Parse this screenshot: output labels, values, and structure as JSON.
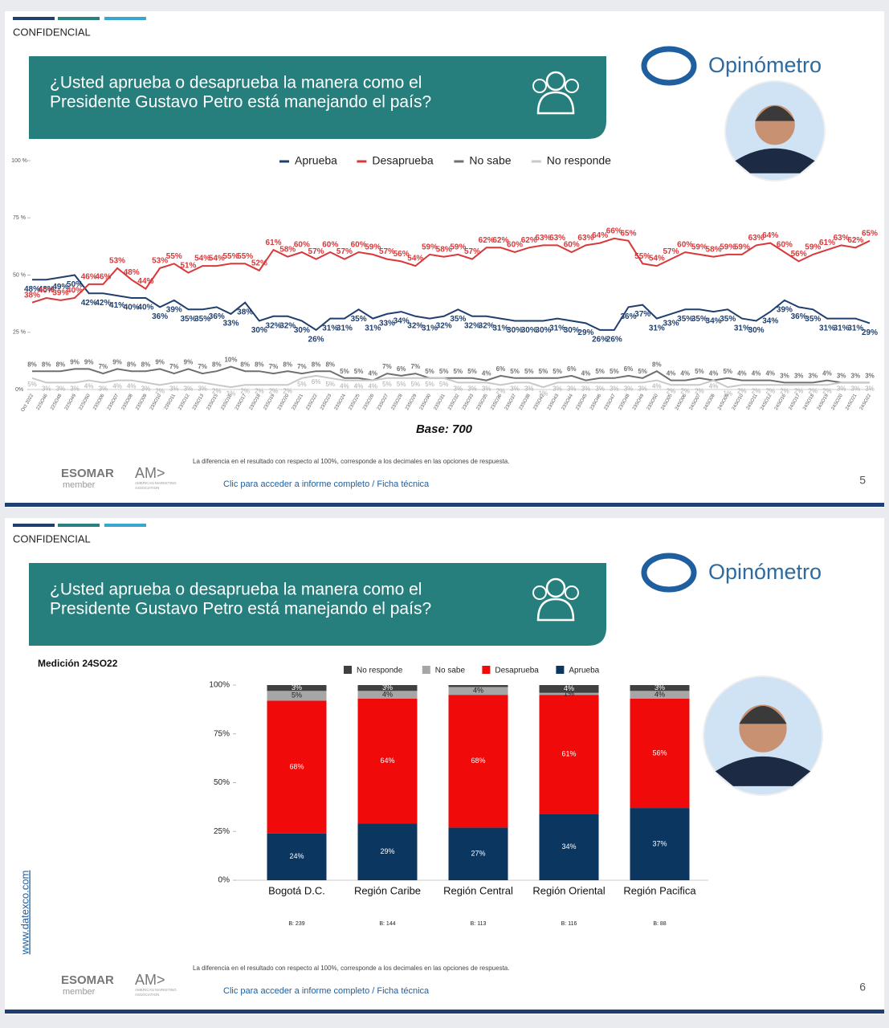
{
  "slides": [
    {
      "confidential": "CONFIDENCIAL",
      "question": [
        "¿Usted aprueba o desaprueba la manera como el",
        "Presidente Gustavo Petro está manejando el país?"
      ],
      "brand": "Opinómetro",
      "note": "La diferencia en el resultado con respecto al 100%, corresponde a los decimales en las opciones de respuesta.",
      "link": "Clic para acceder a informe completo / Ficha técnica",
      "page": 5,
      "esomar": "ESOMAR",
      "member": "member",
      "ama": "AM>",
      "ama_sub": [
        "AMERICAN MARKETING",
        "ASSOCIATION"
      ]
    },
    {
      "confidential": "CONFIDENCIAL",
      "question": [
        "¿Usted aprueba o desaprueba la manera como el",
        "Presidente Gustavo Petro está manejando el país?"
      ],
      "brand": "Opinómetro",
      "note": "La diferencia en el resultado con respecto al 100%, corresponde a los decimales en las opciones de respuesta.",
      "link": "Clic para acceder a informe completo / Ficha técnica",
      "page": 6,
      "esomar": "ESOMAR",
      "member": "member",
      "ama": "AM>",
      "ama_sub": [
        "AMERICAN MARKETING",
        "ASSOCIATION"
      ],
      "website": "www.datexco.com"
    }
  ],
  "chart_data": [
    {
      "type": "line",
      "base": "Base: 700",
      "x": [
        "Oct 2022",
        "22SO46",
        "22SO48",
        "22SO49",
        "22SO50",
        "23SO06",
        "23SO07",
        "23SO08",
        "23SO09",
        "23SO10",
        "23SO11",
        "23SO12",
        "23SO13",
        "23SO15",
        "23SO16",
        "23SO17",
        "23SO18",
        "23SO19",
        "23SO20",
        "23SO21",
        "23SO22",
        "23SO23",
        "23SO24",
        "23SO25",
        "23SO26",
        "23SO27",
        "23SO28",
        "23SO29",
        "23SO30",
        "23SO31",
        "23SO32",
        "23SO33",
        "23SO35",
        "23SO36",
        "23SO37",
        "23SO38",
        "23SO42",
        "23SO43",
        "23SO44",
        "23SO45",
        "23SO46",
        "23SO47",
        "23SO48",
        "23SO49",
        "23SO50",
        "24SO05",
        "24SO06",
        "24SO07",
        "24SO08",
        "24SO09",
        "24SO10",
        "24SO11",
        "24SO12",
        "24SO16",
        "24SO17",
        "24SO18",
        "24SO19",
        "24SO20",
        "24SO21",
        "24SO22"
      ],
      "ylim": [
        0,
        100
      ],
      "yticks": [
        {
          "value": 0,
          "label": "0%"
        },
        {
          "value": 25,
          "label": "25 %"
        },
        {
          "value": 50,
          "label": "50 %"
        },
        {
          "value": 75,
          "label": "75 %"
        },
        {
          "value": 100,
          "label": "100 %"
        }
      ],
      "grid": false,
      "series": [
        {
          "name": "Aprueba",
          "color": "#1f3f6e",
          "values": [
            48,
            48,
            49,
            50,
            42,
            42,
            41,
            40,
            40,
            36,
            39,
            35,
            35,
            36,
            33,
            38,
            30,
            32,
            32,
            30,
            26,
            31,
            31,
            35,
            31,
            33,
            34,
            32,
            31,
            32,
            35,
            32,
            32,
            31,
            30,
            30,
            30,
            31,
            30,
            29,
            26,
            26,
            36,
            37,
            31,
            33,
            35,
            35,
            34,
            35,
            31,
            30,
            34,
            39,
            36,
            35,
            31,
            31,
            31,
            29
          ],
          "value_labels": [
            "48%",
            "48%",
            "49%",
            "50%",
            "42%",
            "42%",
            "41%",
            "40%",
            "40%",
            "36%",
            "39%",
            "35%",
            "35%",
            "36%",
            "33%",
            "38%",
            "30%",
            "32%",
            "32%",
            "30%",
            "26%",
            "31%",
            "31%",
            "35%",
            "31%",
            "33%",
            "34%",
            "32%",
            "31%",
            "32%",
            "35%",
            "32%",
            "32%",
            "31%",
            "30%",
            "30%",
            "30%",
            "31%",
            "30%",
            "29%",
            "26%",
            "26%",
            "36%",
            "37%",
            "31%",
            "33%",
            "35%",
            "35%",
            "34%",
            "35%",
            "31%",
            "30%",
            "34%",
            "39%",
            "36%",
            "35%",
            "31%",
            "31%",
            "31%",
            "29%"
          ]
        },
        {
          "name": "Desaprueba",
          "color": "#d9383a",
          "values": [
            38,
            40,
            39,
            40,
            46,
            46,
            53,
            48,
            44,
            53,
            55,
            51,
            54,
            54,
            55,
            55,
            52,
            61,
            58,
            60,
            57,
            60,
            57,
            60,
            59,
            57,
            56,
            54,
            59,
            58,
            59,
            57,
            62,
            62,
            60,
            62,
            63,
            63,
            60,
            63,
            64,
            66,
            65,
            55,
            54,
            57,
            60,
            59,
            58,
            59,
            59,
            63,
            64,
            60,
            56,
            59,
            61,
            63,
            62,
            65
          ],
          "value_labels": [
            "38%",
            "40%",
            "39%",
            "40%",
            "46%",
            "46%",
            "53%",
            "48%",
            "44%",
            "53%",
            "55%",
            "51%",
            "54%",
            "54%",
            "55%",
            "55%",
            "52%",
            "61%",
            "58%",
            "60%",
            "57%",
            "60%",
            "57%",
            "60%",
            "59%",
            "57%",
            "56%",
            "54%",
            "59%",
            "58%",
            "59%",
            "57%",
            "62%",
            "62%",
            "60%",
            "62%",
            "63%",
            "63%",
            "60%",
            "63%",
            "64%",
            "66%",
            "65%",
            "55%",
            "54%",
            "57%",
            "60%",
            "59%",
            "58%",
            "59%",
            "59%",
            "63%",
            "64%",
            "60%",
            "56%",
            "59%",
            "61%",
            "63%",
            "62%",
            "65%"
          ]
        },
        {
          "name": "No sabe",
          "color": "#707070",
          "values": [
            8,
            8,
            8,
            9,
            9,
            7,
            9,
            8,
            8,
            9,
            7,
            9,
            7,
            8,
            10,
            8,
            8,
            7,
            8,
            7,
            8,
            8,
            5,
            5,
            4,
            7,
            6,
            7,
            5,
            5,
            5,
            5,
            4,
            6,
            5,
            5,
            5,
            5,
            6,
            4,
            5,
            5,
            6,
            5,
            8,
            4,
            4,
            5,
            4,
            5,
            4,
            4,
            4,
            3,
            3,
            3,
            4,
            3,
            3,
            3
          ],
          "value_labels": [
            "8%",
            "8%",
            "8%",
            "9%",
            "9%",
            "7%",
            "9%",
            "8%",
            "8%",
            "9%",
            "7%",
            "9%",
            "7%",
            "8%",
            "10%",
            "8%",
            "8%",
            "7%",
            "8%",
            "7%",
            "8%",
            "8%",
            "5%",
            "5%",
            "4%",
            "7%",
            "6%",
            "7%",
            "5%",
            "5%",
            "5%",
            "5%",
            "4%",
            "6%",
            "5%",
            "5%",
            "5%",
            "5%",
            "6%",
            "4%",
            "5%",
            "5%",
            "6%",
            "5%",
            "8%",
            "4%",
            "4%",
            "5%",
            "4%",
            "5%",
            "4%",
            "4%",
            "4%",
            "3%",
            "3%",
            "3%",
            "4%",
            "3%",
            "3%",
            "3%"
          ]
        },
        {
          "name": "No responde",
          "color": "#c8c8c8",
          "values": [
            5,
            3,
            3,
            3,
            4,
            3,
            4,
            4,
            3,
            2,
            3,
            3,
            3,
            2,
            1,
            2,
            2,
            2,
            2,
            5,
            6,
            5,
            4,
            4,
            4,
            5,
            5,
            5,
            5,
            5,
            3,
            3,
            3,
            2,
            3,
            3,
            1,
            3,
            3,
            3,
            3,
            3,
            3,
            3,
            4,
            2,
            2,
            2,
            4,
            1,
            2,
            2,
            2,
            2,
            2,
            2,
            2,
            3,
            3,
            3
          ],
          "value_labels": [
            "5%",
            "3%",
            "3%",
            "3%",
            "4%",
            "3%",
            "4%",
            "4%",
            "3%",
            "2%",
            "3%",
            "3%",
            "3%",
            "2%",
            "1%",
            "2%",
            "2%",
            "2%",
            "2%",
            "5%",
            "6%",
            "5%",
            "4%",
            "4%",
            "4%",
            "5%",
            "5%",
            "5%",
            "5%",
            "5%",
            "3%",
            "3%",
            "3%",
            "2%",
            "3%",
            "3%",
            "1%",
            "3%",
            "3%",
            "3%",
            "3%",
            "3%",
            "3%",
            "3%",
            "4%",
            "2%",
            "2%",
            "2%",
            "4%",
            "1%",
            "2%",
            "2%",
            "2%",
            "2%",
            "2%",
            "2%",
            "2%",
            "3%",
            "3%",
            "3%"
          ]
        }
      ]
    },
    {
      "type": "bar",
      "stacked": true,
      "subtitle": "Medición 24SO22",
      "categories": [
        "Bogotá D.C.",
        "Región Caribe",
        "Región Central",
        "Región Oriental",
        "Región Pacifica"
      ],
      "bases": [
        "B: 239",
        "B: 144",
        "B: 113",
        "B: 116",
        "B: 88"
      ],
      "ylim": [
        0,
        100
      ],
      "yticks": [
        {
          "value": 0,
          "label": "0%"
        },
        {
          "value": 25,
          "label": "25%"
        },
        {
          "value": 50,
          "label": "50%"
        },
        {
          "value": 75,
          "label": "75%"
        },
        {
          "value": 100,
          "label": "100%"
        }
      ],
      "grid": false,
      "series": [
        {
          "name": "Aprueba",
          "color": "#0b3660",
          "values": [
            24,
            29,
            27,
            34,
            37
          ],
          "value_labels": [
            "24%",
            "29%",
            "27%",
            "34%",
            "37%"
          ]
        },
        {
          "name": "Desaprueba",
          "color": "#f00a0a",
          "values": [
            68,
            64,
            68,
            61,
            56
          ],
          "value_labels": [
            "68%",
            "64%",
            "68%",
            "61%",
            "56%"
          ]
        },
        {
          "name": "No sabe",
          "color": "#a6a6a6",
          "values": [
            5,
            4,
            4,
            1,
            4
          ],
          "value_labels": [
            "5%",
            "4%",
            "4%",
            "1%",
            "4%"
          ]
        },
        {
          "name": "No responde",
          "color": "#404040",
          "values": [
            3,
            3,
            1,
            4,
            3
          ],
          "value_labels": [
            "3%",
            "3%",
            null,
            "4%",
            "3%"
          ]
        }
      ]
    }
  ]
}
